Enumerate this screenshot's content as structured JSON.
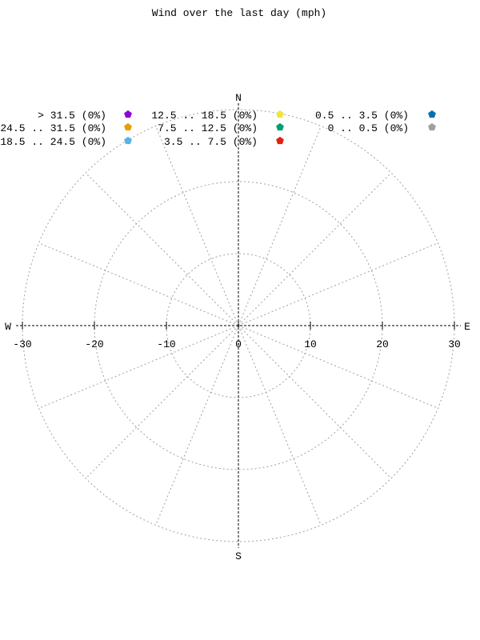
{
  "chart_data": {
    "type": "polar-windrose",
    "title": "Wind over the last day (mph)",
    "radial_range": [
      0,
      30
    ],
    "radial_ticks": [
      10,
      20,
      30
    ],
    "x_tick_labels": [
      "-30",
      "-20",
      "-10",
      "0",
      "10",
      "20",
      "30"
    ],
    "x_tick_values": [
      -30,
      -20,
      -10,
      0,
      10,
      20,
      30
    ],
    "direction_labels": {
      "north": "N",
      "south": "S",
      "east": "E",
      "west": "W"
    },
    "spoke_count": 16,
    "grid": true,
    "legend_position": "top",
    "legend": [
      {
        "label": "> 31.5 (0%)",
        "color": "#9400d3",
        "percent": 0
      },
      {
        "label": "24.5 .. 31.5 (0%)",
        "color": "#e69f00",
        "percent": 0
      },
      {
        "label": "18.5 .. 24.5 (0%)",
        "color": "#56b4e9",
        "percent": 0
      },
      {
        "label": "12.5 .. 18.5 (0%)",
        "color": "#f0e442",
        "percent": 0
      },
      {
        "label": "7.5 .. 12.5 (0%)",
        "color": "#009e73",
        "percent": 0
      },
      {
        "label": "3.5 .. 7.5 (0%)",
        "color": "#e51e10",
        "percent": 0
      },
      {
        "label": "0.5 .. 3.5 (0%)",
        "color": "#0072b2",
        "percent": 0
      },
      {
        "label": "0 .. 0.5 (0%)",
        "color": "#a0a0a0",
        "percent": 0
      }
    ]
  }
}
